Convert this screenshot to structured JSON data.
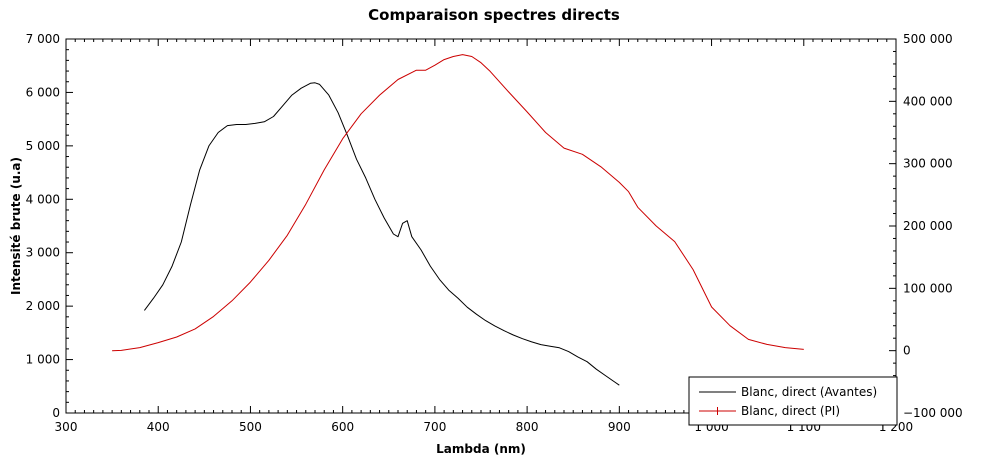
{
  "chart_data": {
    "type": "line",
    "title": "Comparaison spectres directs",
    "xlabel": "Lambda (nm)",
    "ylabel": "Intensité brute (u.a)",
    "y2label": "",
    "xlim": [
      300,
      1200
    ],
    "ylim": [
      0,
      7000
    ],
    "y2lim": [
      -100000,
      500000
    ],
    "x_ticks": [
      300,
      400,
      500,
      600,
      700,
      800,
      900,
      1000,
      1100,
      1200
    ],
    "x_tick_labels": [
      "300",
      "400",
      "500",
      "600",
      "700",
      "800",
      "900",
      "1 000",
      "1 100",
      "1 200"
    ],
    "y_ticks": [
      0,
      1000,
      2000,
      3000,
      4000,
      5000,
      6000,
      7000
    ],
    "y_tick_labels": [
      "0",
      "1 000",
      "2 000",
      "3 000",
      "4 000",
      "5 000",
      "6 000",
      "7 000"
    ],
    "y2_ticks": [
      -100000,
      0,
      100000,
      200000,
      300000,
      400000,
      500000
    ],
    "y2_tick_labels": [
      "−100 000",
      "0",
      "100 000",
      "200 000",
      "300 000",
      "400 000",
      "500 000"
    ],
    "grid": false,
    "legend_position": "bottom-right",
    "series": [
      {
        "name": "Blanc, direct (Avantes)",
        "axis": "left",
        "color": "#000000",
        "x": [
          385,
          395,
          405,
          415,
          425,
          435,
          445,
          455,
          465,
          475,
          485,
          495,
          505,
          515,
          525,
          535,
          545,
          555,
          565,
          570,
          575,
          585,
          595,
          605,
          615,
          625,
          635,
          645,
          650,
          655,
          660,
          665,
          670,
          675,
          685,
          695,
          705,
          715,
          725,
          735,
          745,
          755,
          765,
          775,
          785,
          795,
          805,
          815,
          825,
          835,
          845,
          855,
          865,
          875,
          885,
          895,
          900
        ],
        "y": [
          1920,
          2150,
          2400,
          2750,
          3200,
          3900,
          4550,
          5000,
          5250,
          5380,
          5400,
          5400,
          5420,
          5450,
          5550,
          5750,
          5950,
          6080,
          6170,
          6180,
          6150,
          5950,
          5620,
          5200,
          4750,
          4400,
          4000,
          3650,
          3500,
          3350,
          3300,
          3550,
          3600,
          3300,
          3050,
          2750,
          2500,
          2300,
          2150,
          1980,
          1850,
          1730,
          1630,
          1540,
          1460,
          1390,
          1330,
          1280,
          1250,
          1220,
          1150,
          1050,
          960,
          820,
          700,
          580,
          520
        ]
      },
      {
        "name": "Blanc, direct (PI)",
        "axis": "right",
        "color": "#cc0000",
        "x": [
          350,
          360,
          380,
          400,
          420,
          440,
          460,
          480,
          500,
          520,
          540,
          560,
          580,
          600,
          620,
          640,
          660,
          680,
          690,
          700,
          710,
          720,
          730,
          740,
          750,
          760,
          780,
          800,
          820,
          840,
          860,
          880,
          900,
          910,
          920,
          940,
          960,
          980,
          1000,
          1020,
          1040,
          1060,
          1080,
          1100
        ],
        "y": [
          0,
          500,
          5000,
          13000,
          22000,
          35000,
          55000,
          80000,
          110000,
          145000,
          185000,
          235000,
          290000,
          340000,
          380000,
          410000,
          435000,
          450000,
          450000,
          458000,
          467000,
          472000,
          475000,
          472000,
          462000,
          448000,
          415000,
          383000,
          350000,
          325000,
          315000,
          295000,
          270000,
          255000,
          230000,
          200000,
          175000,
          130000,
          70000,
          40000,
          18000,
          10000,
          5000,
          2000
        ]
      }
    ]
  }
}
